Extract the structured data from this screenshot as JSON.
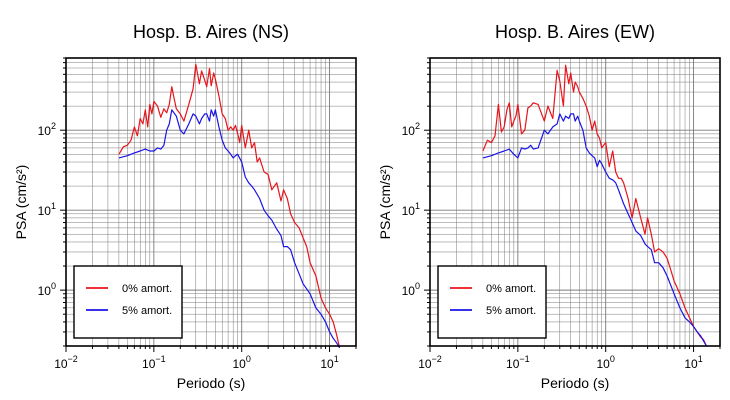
{
  "chart_data": [
    {
      "type": "line",
      "title": "Hosp. B. Aires (NS)",
      "xlabel": "Periodo (s)",
      "ylabel": "PSA (cm/s²)",
      "x_scale": "log",
      "y_scale": "log",
      "xlim": [
        0.01,
        20
      ],
      "ylim": [
        0.2,
        800
      ],
      "grid": true,
      "legend_position": "bottom-left",
      "x_tick_labels": [
        {
          "value": 0.01,
          "base": "10",
          "exp": "−2"
        },
        {
          "value": 0.1,
          "base": "10",
          "exp": "−1"
        },
        {
          "value": 1,
          "base": "10",
          "exp": "0"
        },
        {
          "value": 10,
          "base": "10",
          "exp": "1"
        }
      ],
      "y_tick_labels": [
        {
          "value": 1,
          "base": "10",
          "exp": "0"
        },
        {
          "value": 10,
          "base": "10",
          "exp": "1"
        },
        {
          "value": 100,
          "base": "10",
          "exp": "2"
        }
      ],
      "series": [
        {
          "name": "0% amort.",
          "color": "#e8141a",
          "x": [
            0.04,
            0.045,
            0.05,
            0.055,
            0.06,
            0.065,
            0.07,
            0.075,
            0.08,
            0.085,
            0.09,
            0.095,
            0.1,
            0.11,
            0.12,
            0.13,
            0.14,
            0.15,
            0.16,
            0.17,
            0.18,
            0.2,
            0.22,
            0.25,
            0.28,
            0.3,
            0.33,
            0.35,
            0.38,
            0.4,
            0.43,
            0.45,
            0.48,
            0.5,
            0.55,
            0.6,
            0.65,
            0.7,
            0.75,
            0.8,
            0.85,
            0.9,
            0.95,
            1.0,
            1.1,
            1.2,
            1.3,
            1.4,
            1.5,
            1.6,
            1.8,
            2.0,
            2.2,
            2.5,
            2.8,
            3.0,
            3.3,
            3.6,
            4.0,
            4.5,
            5.0,
            5.5,
            6.0,
            7.0,
            8.0,
            9.0,
            10,
            11,
            12,
            13
          ],
          "y": [
            50,
            62,
            65,
            75,
            110,
            85,
            140,
            120,
            180,
            110,
            210,
            160,
            230,
            200,
            145,
            185,
            165,
            210,
            350,
            250,
            185,
            160,
            130,
            210,
            330,
            670,
            380,
            550,
            420,
            350,
            590,
            360,
            520,
            440,
            270,
            160,
            140,
            100,
            110,
            100,
            115,
            90,
            70,
            115,
            60,
            100,
            60,
            70,
            40,
            45,
            30,
            28,
            18,
            22,
            13,
            18,
            14,
            9,
            7,
            6,
            4.5,
            3.5,
            2.2,
            1.5,
            0.8,
            0.6,
            0.5,
            0.4,
            0.28,
            0.19
          ]
        },
        {
          "name": "5% amort.",
          "color": "#1a14e8",
          "x": [
            0.04,
            0.05,
            0.06,
            0.07,
            0.08,
            0.09,
            0.1,
            0.11,
            0.12,
            0.13,
            0.14,
            0.15,
            0.16,
            0.18,
            0.2,
            0.22,
            0.25,
            0.28,
            0.3,
            0.33,
            0.35,
            0.38,
            0.4,
            0.43,
            0.45,
            0.48,
            0.5,
            0.55,
            0.6,
            0.65,
            0.7,
            0.75,
            0.8,
            0.85,
            0.9,
            1.0,
            1.1,
            1.2,
            1.3,
            1.4,
            1.6,
            1.8,
            2.0,
            2.2,
            2.5,
            2.8,
            3.0,
            3.3,
            3.6,
            4.0,
            4.5,
            5.0,
            6.0,
            7.0,
            8.0,
            9.0,
            10,
            11,
            12,
            13
          ],
          "y": [
            45,
            48,
            52,
            55,
            58,
            55,
            55,
            60,
            58,
            65,
            100,
            120,
            180,
            150,
            100,
            90,
            120,
            160,
            150,
            120,
            140,
            160,
            160,
            130,
            180,
            150,
            180,
            110,
            75,
            60,
            55,
            50,
            45,
            48,
            50,
            40,
            26,
            22,
            20,
            18,
            14,
            10,
            8.5,
            7.5,
            5.8,
            4.8,
            3.5,
            3.5,
            3.2,
            2.2,
            1.6,
            1.2,
            0.9,
            0.6,
            0.5,
            0.4,
            0.3,
            0.25,
            0.22,
            0.19
          ]
        }
      ]
    },
    {
      "type": "line",
      "title": "Hosp. B. Aires (EW)",
      "xlabel": "Periodo (s)",
      "ylabel": "PSA (cm/s²)",
      "x_scale": "log",
      "y_scale": "log",
      "xlim": [
        0.01,
        20
      ],
      "ylim": [
        0.2,
        800
      ],
      "grid": true,
      "legend_position": "bottom-left",
      "x_tick_labels": [
        {
          "value": 0.01,
          "base": "10",
          "exp": "−2"
        },
        {
          "value": 0.1,
          "base": "10",
          "exp": "−1"
        },
        {
          "value": 1,
          "base": "10",
          "exp": "0"
        },
        {
          "value": 10,
          "base": "10",
          "exp": "1"
        }
      ],
      "y_tick_labels": [
        {
          "value": 1,
          "base": "10",
          "exp": "0"
        },
        {
          "value": 10,
          "base": "10",
          "exp": "1"
        },
        {
          "value": 100,
          "base": "10",
          "exp": "2"
        }
      ],
      "series": [
        {
          "name": "0% amort.",
          "color": "#e8141a",
          "x": [
            0.04,
            0.045,
            0.05,
            0.055,
            0.06,
            0.065,
            0.07,
            0.075,
            0.08,
            0.085,
            0.09,
            0.095,
            0.1,
            0.11,
            0.12,
            0.13,
            0.14,
            0.15,
            0.17,
            0.2,
            0.22,
            0.25,
            0.28,
            0.3,
            0.33,
            0.35,
            0.38,
            0.4,
            0.43,
            0.45,
            0.48,
            0.5,
            0.55,
            0.6,
            0.65,
            0.7,
            0.75,
            0.8,
            0.85,
            0.9,
            0.95,
            1.0,
            1.1,
            1.2,
            1.3,
            1.4,
            1.5,
            1.6,
            1.8,
            2.0,
            2.2,
            2.5,
            2.8,
            3.0,
            3.3,
            3.6,
            4.0,
            4.5,
            5.0,
            5.5,
            6.0,
            7.0,
            8.0,
            9.0,
            10,
            11,
            12,
            13,
            14
          ],
          "y": [
            55,
            75,
            70,
            85,
            210,
            95,
            110,
            180,
            220,
            110,
            130,
            150,
            210,
            90,
            100,
            190,
            200,
            220,
            210,
            130,
            200,
            140,
            560,
            410,
            200,
            650,
            380,
            520,
            300,
            400,
            350,
            300,
            250,
            200,
            150,
            100,
            130,
            90,
            80,
            60,
            65,
            70,
            35,
            55,
            30,
            25,
            25,
            22,
            14,
            8,
            14,
            8,
            5,
            8,
            5,
            3,
            3.3,
            3,
            2.5,
            1.8,
            1.3,
            0.9,
            0.6,
            0.45,
            0.35,
            0.3,
            0.26,
            0.24,
            0.2
          ]
        },
        {
          "name": "5% amort.",
          "color": "#1a14e8",
          "x": [
            0.04,
            0.05,
            0.06,
            0.07,
            0.08,
            0.09,
            0.1,
            0.11,
            0.12,
            0.13,
            0.14,
            0.15,
            0.17,
            0.2,
            0.22,
            0.25,
            0.28,
            0.3,
            0.33,
            0.35,
            0.38,
            0.4,
            0.43,
            0.45,
            0.48,
            0.5,
            0.55,
            0.6,
            0.65,
            0.7,
            0.75,
            0.8,
            0.85,
            0.9,
            1.0,
            1.1,
            1.2,
            1.3,
            1.4,
            1.6,
            1.8,
            2.0,
            2.2,
            2.5,
            2.8,
            3.0,
            3.3,
            3.6,
            4.0,
            4.5,
            5.0,
            6.0,
            7.0,
            8.0,
            9.0,
            10,
            11,
            12,
            13,
            14
          ],
          "y": [
            45,
            48,
            52,
            55,
            58,
            50,
            45,
            60,
            58,
            60,
            65,
            58,
            60,
            100,
            90,
            110,
            120,
            160,
            130,
            150,
            140,
            160,
            160,
            130,
            150,
            130,
            100,
            60,
            52,
            48,
            45,
            35,
            42,
            38,
            30,
            25,
            24,
            22,
            18,
            12,
            9,
            7,
            5.5,
            4.8,
            3.8,
            3.5,
            3.2,
            2.2,
            2.2,
            1.9,
            1.5,
            0.9,
            0.6,
            0.45,
            0.4,
            0.35,
            0.3,
            0.27,
            0.23,
            0.2
          ]
        }
      ]
    }
  ]
}
